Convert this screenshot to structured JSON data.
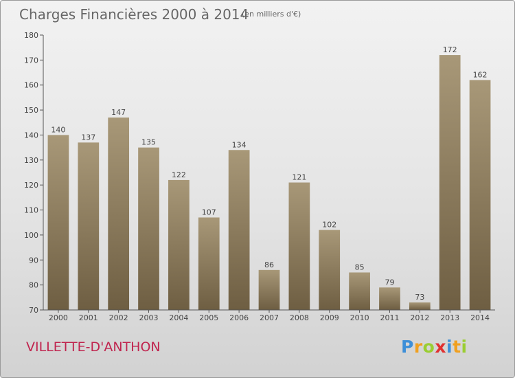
{
  "chart_data": {
    "type": "bar",
    "title": "Charges Financières 2000 à 2014",
    "subtitle": "(en milliers d'€)",
    "categories": [
      "2000",
      "2001",
      "2002",
      "2003",
      "2004",
      "2005",
      "2006",
      "2007",
      "2008",
      "2009",
      "2010",
      "2011",
      "2012",
      "2013",
      "2014"
    ],
    "values": [
      140,
      137,
      147,
      135,
      122,
      107,
      134,
      86,
      121,
      102,
      85,
      79,
      73,
      172,
      162
    ],
    "ylim": [
      70,
      180
    ],
    "yticks": [
      70,
      80,
      90,
      100,
      110,
      120,
      130,
      140,
      150,
      160,
      170,
      180
    ],
    "grid": false,
    "legend": "none",
    "bar_color_top": "#a89878",
    "bar_color_bottom": "#6e5e42"
  },
  "footer": {
    "place_name": "VILLETTE-D'ANTHON",
    "place_color": "#c0244e"
  },
  "brand": {
    "letters": [
      "P",
      "r",
      "o",
      "x",
      "i",
      "t",
      "i"
    ],
    "colors": [
      "#3d8fd8",
      "#f0a020",
      "#9acd32",
      "#e03030",
      "#3d8fd8",
      "#f0a020",
      "#9acd32"
    ]
  }
}
